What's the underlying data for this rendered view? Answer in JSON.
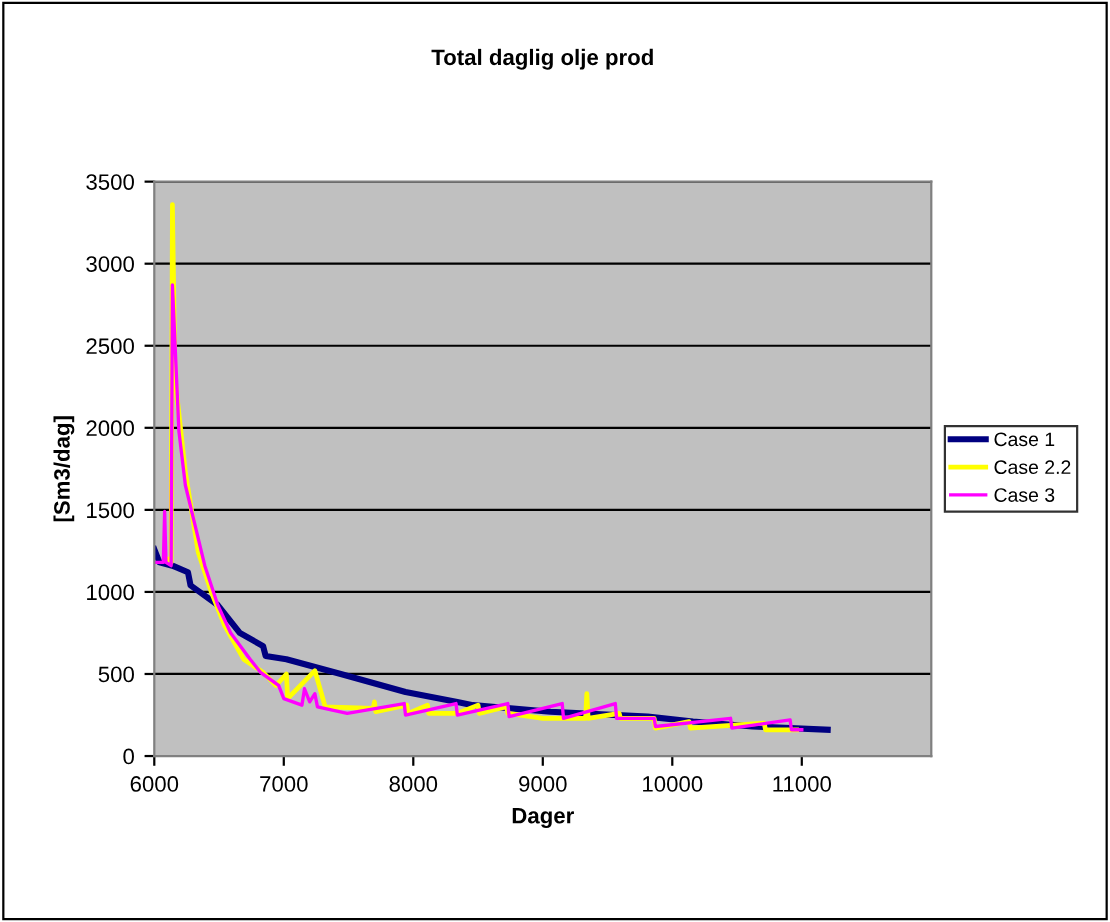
{
  "chart_data": {
    "type": "line",
    "title": "Total daglig olje prod",
    "xlabel": "Dager",
    "ylabel": "[Sm3/dag]",
    "xlim": [
      6000,
      12000
    ],
    "xticks": [
      6000,
      7000,
      8000,
      9000,
      10000,
      11000
    ],
    "ylim": [
      0,
      3500
    ],
    "yticks": [
      0,
      500,
      1000,
      1500,
      2000,
      2500,
      3000,
      3500
    ],
    "grid": "y",
    "legend": "right",
    "marker": "none",
    "line_style": "solid",
    "series": [
      {
        "name": "Case 1",
        "color": "#000080",
        "x": [
          6000,
          6040,
          6140,
          6260,
          6280,
          6490,
          6660,
          6840,
          6860,
          7020,
          7440,
          7940,
          8340,
          8460,
          9060,
          9810,
          10160,
          10620,
          11200
        ],
        "values": [
          1260,
          1180,
          1160,
          1120,
          1040,
          920,
          750,
          670,
          610,
          590,
          500,
          390,
          330,
          310,
          270,
          240,
          210,
          180,
          160
        ]
      },
      {
        "name": "Case 2.2",
        "color": "#ffff00",
        "x": [
          6100,
          6130,
          6140,
          6160,
          6240,
          6340,
          6440,
          6540,
          6690,
          6840,
          6940,
          7020,
          7030,
          7240,
          7320,
          7690,
          7700,
          7710,
          7950,
          7960,
          8110,
          8120,
          8340,
          8500,
          8510,
          8720,
          8730,
          9000,
          9330,
          9340,
          9350,
          9590,
          9600,
          9860,
          9870,
          10130,
          10140,
          10710,
          10720,
          10960
        ],
        "values": [
          1200,
          1180,
          3360,
          2300,
          1730,
          1240,
          1000,
          800,
          590,
          510,
          430,
          500,
          350,
          520,
          300,
          290,
          330,
          270,
          310,
          260,
          310,
          260,
          260,
          310,
          260,
          300,
          260,
          230,
          230,
          380,
          230,
          260,
          230,
          230,
          170,
          210,
          170,
          200,
          160,
          160
        ]
      },
      {
        "name": "Case 3",
        "color": "#ff00ff",
        "x": [
          6000,
          6070,
          6080,
          6090,
          6130,
          6140,
          6190,
          6240,
          6390,
          6490,
          6590,
          6740,
          6820,
          6960,
          7000,
          7140,
          7160,
          7200,
          7240,
          7260,
          7490,
          7930,
          7940,
          8330,
          8340,
          8730,
          8740,
          9150,
          9160,
          9560,
          9570,
          9860,
          9870,
          10450,
          10460,
          10910,
          10920,
          11000
        ],
        "values": [
          1180,
          1180,
          1490,
          1180,
          1160,
          2870,
          1980,
          1650,
          1160,
          920,
          750,
          590,
          510,
          430,
          350,
          310,
          410,
          330,
          380,
          300,
          260,
          320,
          250,
          320,
          250,
          320,
          240,
          320,
          230,
          320,
          230,
          230,
          180,
          230,
          170,
          220,
          160,
          160
        ]
      }
    ]
  }
}
